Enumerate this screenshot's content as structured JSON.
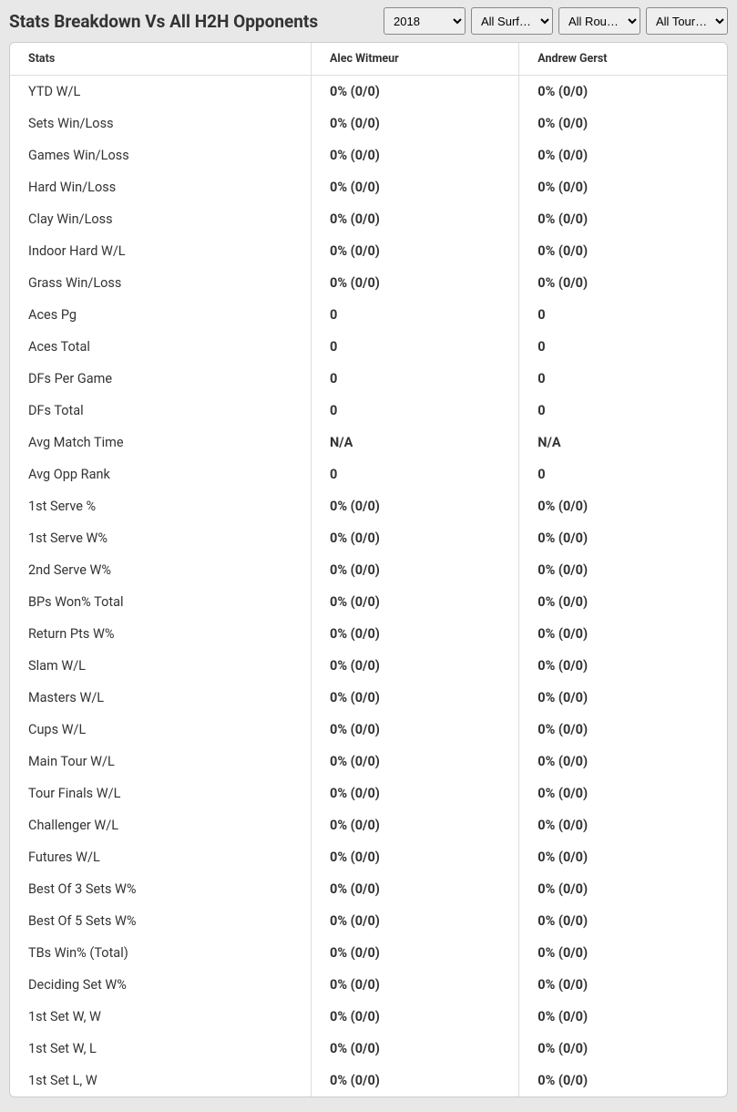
{
  "header": {
    "title": "Stats Breakdown Vs All H2H Opponents"
  },
  "filters": {
    "year": {
      "selected": "2018",
      "options": [
        "2018"
      ]
    },
    "surface": {
      "selected": "All Surf…",
      "options": [
        "All Surf…"
      ]
    },
    "round": {
      "selected": "All Rou…",
      "options": [
        "All Rou…"
      ]
    },
    "tour": {
      "selected": "All Tour…",
      "options": [
        "All Tour…"
      ]
    }
  },
  "table": {
    "columns": [
      "Stats",
      "Alec Witmeur",
      "Andrew Gerst"
    ],
    "rows": [
      {
        "stat": "YTD W/L",
        "p1": "0% (0/0)",
        "p2": "0% (0/0)"
      },
      {
        "stat": "Sets Win/Loss",
        "p1": "0% (0/0)",
        "p2": "0% (0/0)"
      },
      {
        "stat": "Games Win/Loss",
        "p1": "0% (0/0)",
        "p2": "0% (0/0)"
      },
      {
        "stat": "Hard Win/Loss",
        "p1": "0% (0/0)",
        "p2": "0% (0/0)"
      },
      {
        "stat": "Clay Win/Loss",
        "p1": "0% (0/0)",
        "p2": "0% (0/0)"
      },
      {
        "stat": "Indoor Hard W/L",
        "p1": "0% (0/0)",
        "p2": "0% (0/0)"
      },
      {
        "stat": "Grass Win/Loss",
        "p1": "0% (0/0)",
        "p2": "0% (0/0)"
      },
      {
        "stat": "Aces Pg",
        "p1": "0",
        "p2": "0"
      },
      {
        "stat": "Aces Total",
        "p1": "0",
        "p2": "0"
      },
      {
        "stat": "DFs Per Game",
        "p1": "0",
        "p2": "0"
      },
      {
        "stat": "DFs Total",
        "p1": "0",
        "p2": "0"
      },
      {
        "stat": "Avg Match Time",
        "p1": "N/A",
        "p2": "N/A"
      },
      {
        "stat": "Avg Opp Rank",
        "p1": "0",
        "p2": "0"
      },
      {
        "stat": "1st Serve %",
        "p1": "0% (0/0)",
        "p2": "0% (0/0)"
      },
      {
        "stat": "1st Serve W%",
        "p1": "0% (0/0)",
        "p2": "0% (0/0)"
      },
      {
        "stat": "2nd Serve W%",
        "p1": "0% (0/0)",
        "p2": "0% (0/0)"
      },
      {
        "stat": "BPs Won% Total",
        "p1": "0% (0/0)",
        "p2": "0% (0/0)"
      },
      {
        "stat": "Return Pts W%",
        "p1": "0% (0/0)",
        "p2": "0% (0/0)"
      },
      {
        "stat": "Slam W/L",
        "p1": "0% (0/0)",
        "p2": "0% (0/0)"
      },
      {
        "stat": "Masters W/L",
        "p1": "0% (0/0)",
        "p2": "0% (0/0)"
      },
      {
        "stat": "Cups W/L",
        "p1": "0% (0/0)",
        "p2": "0% (0/0)"
      },
      {
        "stat": "Main Tour W/L",
        "p1": "0% (0/0)",
        "p2": "0% (0/0)"
      },
      {
        "stat": "Tour Finals W/L",
        "p1": "0% (0/0)",
        "p2": "0% (0/0)"
      },
      {
        "stat": "Challenger W/L",
        "p1": "0% (0/0)",
        "p2": "0% (0/0)"
      },
      {
        "stat": "Futures W/L",
        "p1": "0% (0/0)",
        "p2": "0% (0/0)"
      },
      {
        "stat": "Best Of 3 Sets W%",
        "p1": "0% (0/0)",
        "p2": "0% (0/0)"
      },
      {
        "stat": "Best Of 5 Sets W%",
        "p1": "0% (0/0)",
        "p2": "0% (0/0)"
      },
      {
        "stat": "TBs Win% (Total)",
        "p1": "0% (0/0)",
        "p2": "0% (0/0)"
      },
      {
        "stat": "Deciding Set W%",
        "p1": "0% (0/0)",
        "p2": "0% (0/0)"
      },
      {
        "stat": "1st Set W, W",
        "p1": "0% (0/0)",
        "p2": "0% (0/0)"
      },
      {
        "stat": "1st Set W, L",
        "p1": "0% (0/0)",
        "p2": "0% (0/0)"
      },
      {
        "stat": "1st Set L, W",
        "p1": "0% (0/0)",
        "p2": "0% (0/0)"
      }
    ]
  }
}
